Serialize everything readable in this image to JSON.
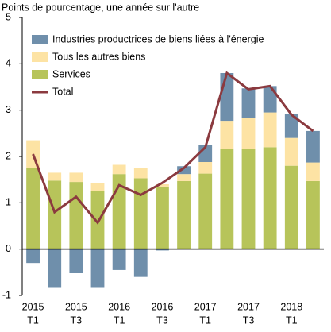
{
  "chart_data": {
    "type": "stacked-bar-line",
    "title": "Points de pourcentage, une année sur l'autre",
    "categories": [
      [
        "2015",
        "T1"
      ],
      null,
      [
        "2015",
        "T3"
      ],
      null,
      [
        "2016",
        "T1"
      ],
      null,
      [
        "2016",
        "T3"
      ],
      null,
      [
        "2017",
        "T1"
      ],
      null,
      [
        "2017",
        "T3"
      ],
      null,
      [
        "2018",
        "T1"
      ],
      null
    ],
    "series": [
      {
        "name": "Industries productrices de biens liées à l'énergie",
        "kind": "bar",
        "color": "#6f8fab",
        "values": [
          -0.3,
          -0.82,
          -0.52,
          -0.82,
          -0.45,
          -0.6,
          -0.03,
          0.17,
          0.37,
          1.03,
          0.63,
          0.57,
          0.52,
          0.68
        ]
      },
      {
        "name": "Tous les autres biens",
        "kind": "bar",
        "color": "#fde3a4",
        "values": [
          0.6,
          0.17,
          0.2,
          0.17,
          0.2,
          0.22,
          0.05,
          0.15,
          0.25,
          0.6,
          0.67,
          0.75,
          0.6,
          0.4
        ]
      },
      {
        "name": "Services",
        "kind": "bar",
        "color": "#b7c45a",
        "values": [
          1.75,
          1.48,
          1.45,
          1.25,
          1.62,
          1.53,
          1.35,
          1.47,
          1.63,
          2.17,
          2.17,
          2.2,
          1.8,
          1.47
        ]
      },
      {
        "name": "Total",
        "kind": "line",
        "color": "#8b3a3f",
        "values": [
          2.05,
          0.8,
          1.13,
          0.57,
          1.38,
          1.17,
          1.43,
          1.75,
          2.2,
          3.8,
          3.45,
          3.52,
          2.9,
          2.55
        ]
      }
    ],
    "ylim": [
      -1,
      5
    ],
    "yticks": [
      -1,
      0,
      1,
      2,
      3,
      4,
      5
    ],
    "legend": "upper left"
  }
}
